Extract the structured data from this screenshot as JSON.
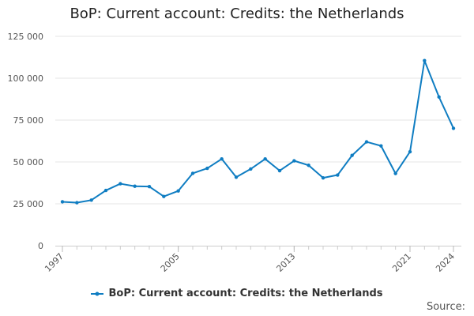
{
  "chart_data": {
    "type": "line",
    "title": "BoP: Current account: Credits: the Netherlands",
    "xlabel": "",
    "ylabel": "",
    "x": [
      1997,
      1998,
      1999,
      2000,
      2001,
      2002,
      2003,
      2004,
      2005,
      2006,
      2007,
      2008,
      2009,
      2010,
      2011,
      2012,
      2013,
      2014,
      2015,
      2016,
      2017,
      2018,
      2019,
      2020,
      2021,
      2022,
      2023,
      2024
    ],
    "x_tick_labels": [
      "1997",
      "2005",
      "2013",
      "2021",
      "2024"
    ],
    "x_ticks": [
      1997,
      2005,
      2013,
      2021,
      2024
    ],
    "xlim": [
      1997,
      2024
    ],
    "y_tick_labels": [
      "0",
      "25 000",
      "50 000",
      "75 000",
      "100 000",
      "125 000"
    ],
    "y_ticks": [
      0,
      25000,
      50000,
      75000,
      100000,
      125000
    ],
    "ylim": [
      0,
      125000
    ],
    "series": [
      {
        "name": "BoP: Current account: Credits: the Netherlands",
        "color": "#0f7dc2",
        "values": [
          26200,
          25700,
          27200,
          33000,
          37000,
          35500,
          35300,
          29400,
          32700,
          43200,
          46200,
          51800,
          40900,
          45800,
          51800,
          44800,
          50700,
          48000,
          40500,
          42200,
          53900,
          62000,
          59600,
          43100,
          56100,
          110500,
          88800,
          70100
        ]
      }
    ],
    "grid": true,
    "legend_position": "bottom"
  },
  "source_label": "Source:"
}
